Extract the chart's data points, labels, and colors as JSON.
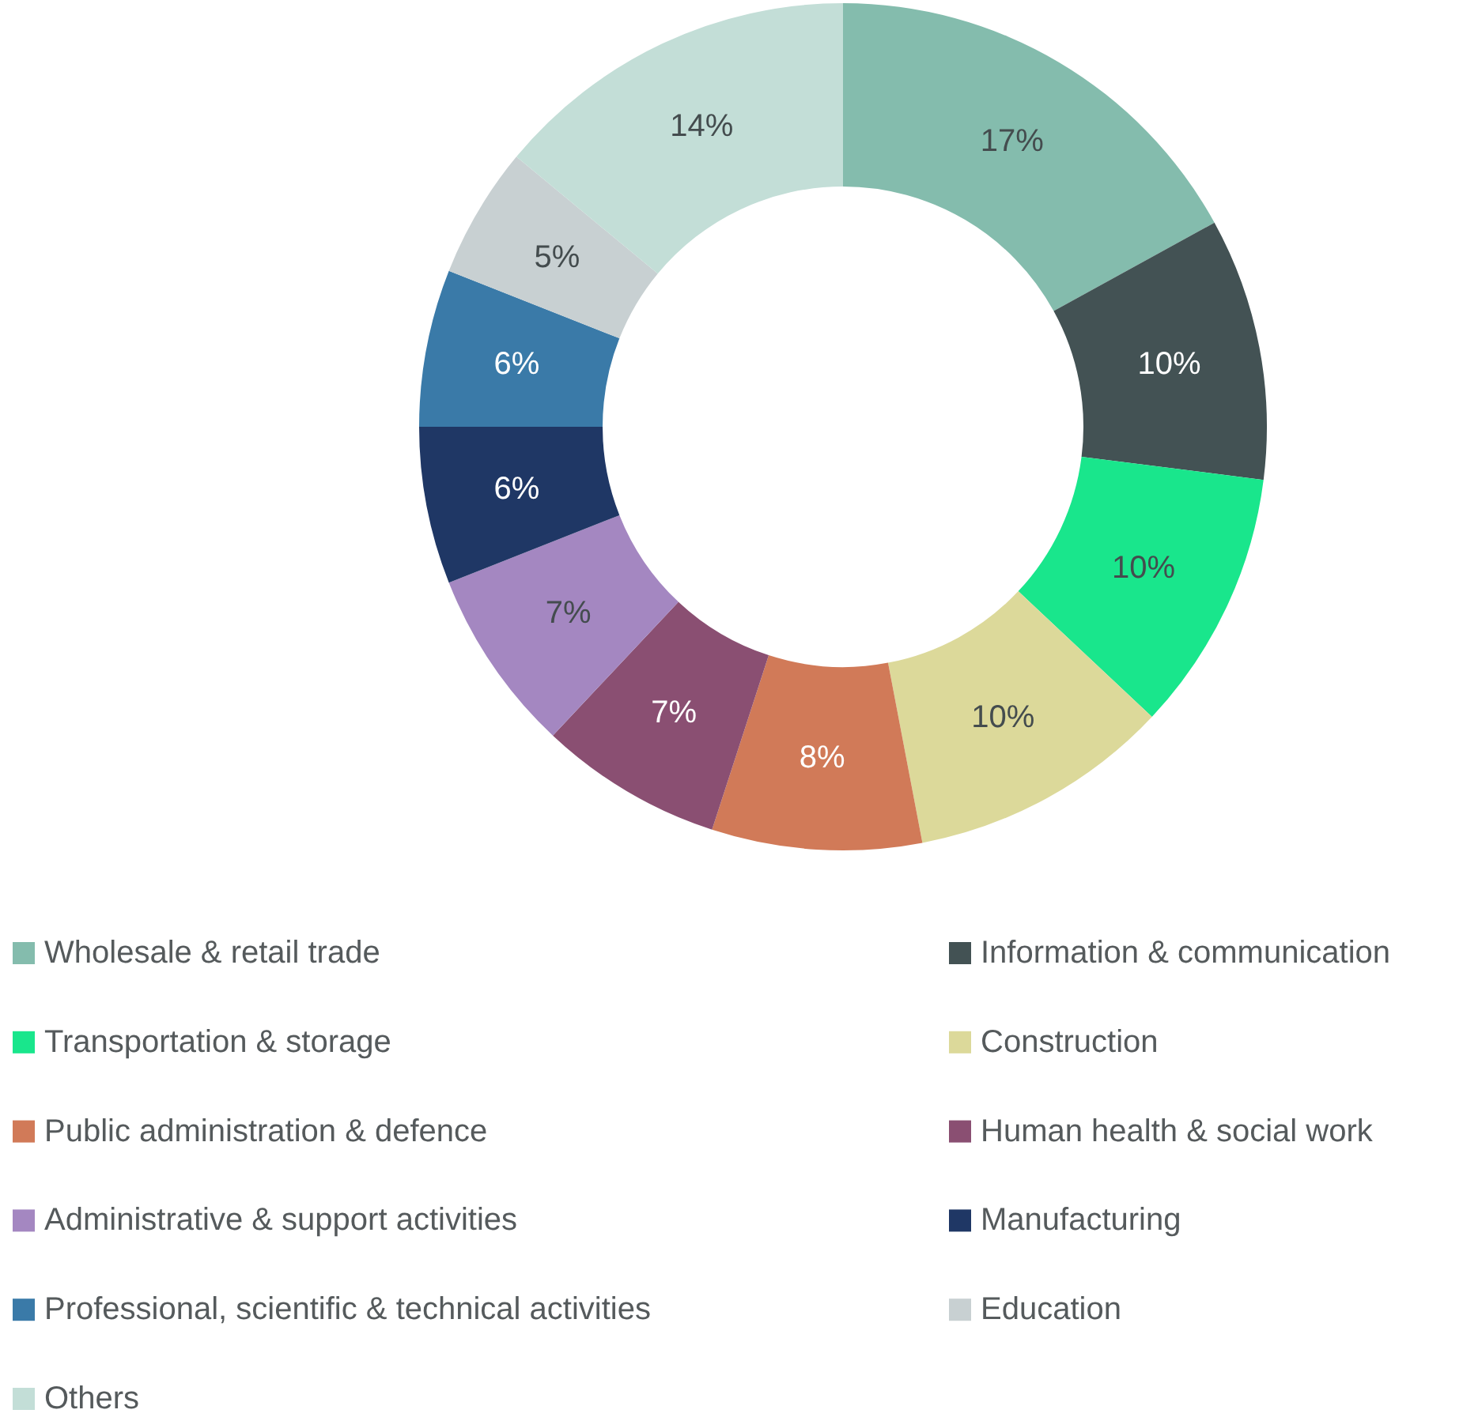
{
  "chart_data": {
    "type": "donut",
    "categories": [
      "Wholesale & retail trade",
      "Information & communication",
      "Transportation & storage",
      "Construction",
      "Public administration & defence",
      "Human health & social work",
      "Administrative & support activities",
      "Manufacturing",
      "Professional, scientific & technical activities",
      "Education",
      "Others"
    ],
    "values": [
      17,
      10,
      10,
      10,
      8,
      7,
      7,
      6,
      6,
      5,
      14
    ],
    "value_labels": [
      "17%",
      "10%",
      "10%",
      "10%",
      "8%",
      "7%",
      "7%",
      "6%",
      "6%",
      "5%",
      "14%"
    ],
    "colors": [
      "#84bcad",
      "#435254",
      "#19e68c",
      "#dcd99a",
      "#d17a58",
      "#8a4f72",
      "#a487c1",
      "#1f3765",
      "#3a7aa8",
      "#c8d0d2",
      "#c3ded7"
    ],
    "legend": "bottom"
  }
}
